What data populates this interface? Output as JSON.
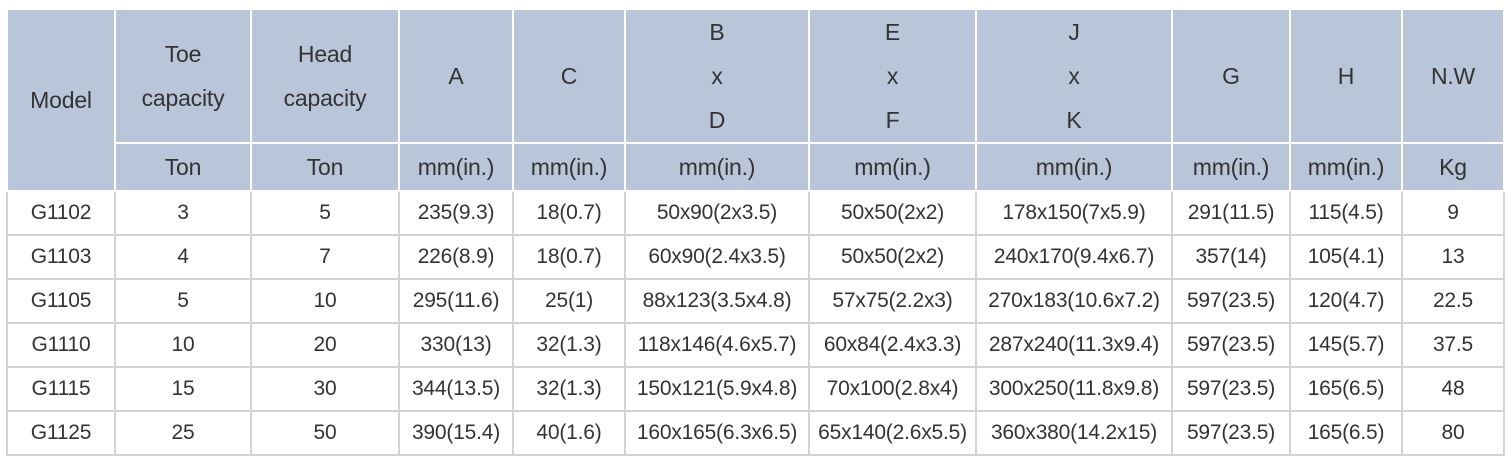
{
  "table": {
    "header": {
      "model": "Model",
      "columns": [
        {
          "name": "Toe capacity",
          "unit": "Ton"
        },
        {
          "name": "Head capacity",
          "unit": "Ton"
        },
        {
          "name": "A",
          "unit": "mm(in.)"
        },
        {
          "name": "C",
          "unit": "mm(in.)"
        },
        {
          "name": "B x D",
          "unit": "mm(in.)"
        },
        {
          "name": "E x F",
          "unit": "mm(in.)"
        },
        {
          "name": "J x K",
          "unit": "mm(in.)"
        },
        {
          "name": "G",
          "unit": "mm(in.)"
        },
        {
          "name": "H",
          "unit": "mm(in.)"
        },
        {
          "name": "N.W",
          "unit": "Kg"
        }
      ]
    },
    "rows": [
      [
        "G1102",
        "3",
        "5",
        "235(9.3)",
        "18(0.7)",
        "50x90(2x3.5)",
        "50x50(2x2)",
        "178x150(7x5.9)",
        "291(11.5)",
        "115(4.5)",
        "9"
      ],
      [
        "G1103",
        "4",
        "7",
        "226(8.9)",
        "18(0.7)",
        "60x90(2.4x3.5)",
        "50x50(2x2)",
        "240x170(9.4x6.7)",
        "357(14)",
        "105(4.1)",
        "13"
      ],
      [
        "G1105",
        "5",
        "10",
        "295(11.6)",
        "25(1)",
        "88x123(3.5x4.8)",
        "57x75(2.2x3)",
        "270x183(10.6x7.2)",
        "597(23.5)",
        "120(4.7)",
        "22.5"
      ],
      [
        "G1110",
        "10",
        "20",
        "330(13)",
        "32(1.3)",
        "118x146(4.6x5.7)",
        "60x84(2.4x3.3)",
        "287x240(11.3x9.4)",
        "597(23.5)",
        "145(5.7)",
        "37.5"
      ],
      [
        "G1115",
        "15",
        "30",
        "344(13.5)",
        "32(1.3)",
        "150x121(5.9x4.8)",
        "70x100(2.8x4)",
        "300x250(11.8x9.8)",
        "597(23.5)",
        "165(6.5)",
        "48"
      ],
      [
        "G1125",
        "25",
        "50",
        "390(15.4)",
        "40(1.6)",
        "160x165(6.3x6.5)",
        "65x140(2.6x5.5)",
        "360x380(14.2x15)",
        "597(23.5)",
        "165(6.5)",
        "80"
      ]
    ]
  }
}
